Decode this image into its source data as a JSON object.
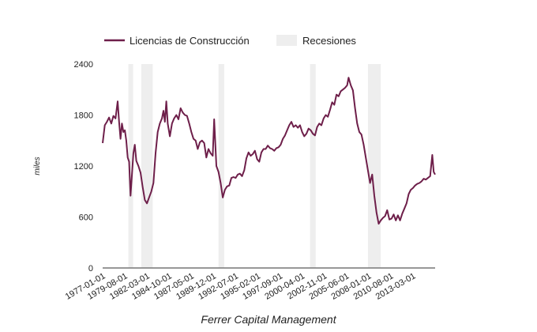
{
  "chart_data": {
    "type": "line",
    "title": "",
    "xlabel": "Ferrer Capital Management",
    "ylabel": "miles",
    "ylim": [
      0,
      2400
    ],
    "yticks": [
      "0",
      "600",
      "1200",
      "1800",
      "2400"
    ],
    "ytick_values": [
      0,
      600,
      1200,
      1800,
      2400
    ],
    "x_start": "1977-01",
    "x_end": "2015-10",
    "xticks": [
      "1977-01-01",
      "1979-08-01",
      "1982-03-01",
      "1984-10-01",
      "1987-05-01",
      "1989-12-01",
      "1992-07-01",
      "1995-02-01",
      "1997-09-01",
      "2000-04-01",
      "2002-11-01",
      "2005-06-01",
      "2008-01-01",
      "2010-08-01",
      "2013-03-01"
    ],
    "legend": {
      "position": "top",
      "entries": [
        {
          "label": "Licencias de Construcción",
          "kind": "line",
          "color": "#6e1f4a"
        },
        {
          "label": "Recesiones",
          "kind": "box",
          "color": "#eeeeee"
        }
      ]
    },
    "recessions": [
      {
        "start": "1980-01",
        "end": "1980-07"
      },
      {
        "start": "1981-07",
        "end": "1982-11"
      },
      {
        "start": "1990-07",
        "end": "1991-03"
      },
      {
        "start": "2001-03",
        "end": "2001-11"
      },
      {
        "start": "2007-12",
        "end": "2009-06"
      }
    ],
    "series": [
      {
        "name": "Licencias de Construcción",
        "color": "#6e1f4a",
        "points": [
          [
            "1977-01",
            1470
          ],
          [
            "1977-04",
            1680
          ],
          [
            "1977-07",
            1720
          ],
          [
            "1977-10",
            1770
          ],
          [
            "1978-01",
            1700
          ],
          [
            "1978-04",
            1790
          ],
          [
            "1978-07",
            1760
          ],
          [
            "1978-10",
            1960
          ],
          [
            "1978-12",
            1720
          ],
          [
            "1979-02",
            1520
          ],
          [
            "1979-04",
            1700
          ],
          [
            "1979-06",
            1600
          ],
          [
            "1979-08",
            1620
          ],
          [
            "1979-10",
            1500
          ],
          [
            "1979-12",
            1300
          ],
          [
            "1980-02",
            1250
          ],
          [
            "1980-04",
            850
          ],
          [
            "1980-06",
            1100
          ],
          [
            "1980-08",
            1350
          ],
          [
            "1980-10",
            1450
          ],
          [
            "1980-12",
            1260
          ],
          [
            "1981-03",
            1200
          ],
          [
            "1981-06",
            1120
          ],
          [
            "1981-09",
            950
          ],
          [
            "1981-12",
            800
          ],
          [
            "1982-03",
            760
          ],
          [
            "1982-06",
            830
          ],
          [
            "1982-09",
            900
          ],
          [
            "1982-12",
            1000
          ],
          [
            "1983-03",
            1350
          ],
          [
            "1983-06",
            1600
          ],
          [
            "1983-09",
            1700
          ],
          [
            "1983-12",
            1760
          ],
          [
            "1984-02",
            1850
          ],
          [
            "1984-04",
            1720
          ],
          [
            "1984-06",
            1960
          ],
          [
            "1984-08",
            1700
          ],
          [
            "1984-11",
            1550
          ],
          [
            "1985-02",
            1700
          ],
          [
            "1985-05",
            1760
          ],
          [
            "1985-08",
            1800
          ],
          [
            "1985-11",
            1750
          ],
          [
            "1986-02",
            1880
          ],
          [
            "1986-05",
            1830
          ],
          [
            "1986-08",
            1800
          ],
          [
            "1986-11",
            1790
          ],
          [
            "1987-02",
            1700
          ],
          [
            "1987-05",
            1600
          ],
          [
            "1987-08",
            1520
          ],
          [
            "1987-11",
            1500
          ],
          [
            "1988-02",
            1400
          ],
          [
            "1988-05",
            1480
          ],
          [
            "1988-08",
            1500
          ],
          [
            "1988-11",
            1470
          ],
          [
            "1989-02",
            1300
          ],
          [
            "1989-05",
            1400
          ],
          [
            "1989-08",
            1350
          ],
          [
            "1989-11",
            1320
          ],
          [
            "1990-01",
            1750
          ],
          [
            "1990-04",
            1200
          ],
          [
            "1990-07",
            1130
          ],
          [
            "1990-10",
            1000
          ],
          [
            "1991-01",
            830
          ],
          [
            "1991-04",
            920
          ],
          [
            "1991-07",
            960
          ],
          [
            "1991-10",
            970
          ],
          [
            "1992-01",
            1060
          ],
          [
            "1992-04",
            1070
          ],
          [
            "1992-07",
            1060
          ],
          [
            "1992-10",
            1100
          ],
          [
            "1993-01",
            1110
          ],
          [
            "1993-04",
            1080
          ],
          [
            "1993-07",
            1150
          ],
          [
            "1993-10",
            1290
          ],
          [
            "1994-01",
            1360
          ],
          [
            "1994-04",
            1320
          ],
          [
            "1994-07",
            1340
          ],
          [
            "1994-10",
            1380
          ],
          [
            "1995-01",
            1280
          ],
          [
            "1995-04",
            1250
          ],
          [
            "1995-07",
            1360
          ],
          [
            "1995-10",
            1400
          ],
          [
            "1996-01",
            1400
          ],
          [
            "1996-04",
            1440
          ],
          [
            "1996-07",
            1410
          ],
          [
            "1996-10",
            1400
          ],
          [
            "1997-01",
            1380
          ],
          [
            "1997-04",
            1410
          ],
          [
            "1997-07",
            1420
          ],
          [
            "1997-10",
            1450
          ],
          [
            "1998-01",
            1520
          ],
          [
            "1998-04",
            1560
          ],
          [
            "1998-07",
            1620
          ],
          [
            "1998-10",
            1680
          ],
          [
            "1999-01",
            1720
          ],
          [
            "1999-04",
            1660
          ],
          [
            "1999-07",
            1680
          ],
          [
            "1999-10",
            1650
          ],
          [
            "2000-01",
            1680
          ],
          [
            "2000-04",
            1600
          ],
          [
            "2000-07",
            1550
          ],
          [
            "2000-10",
            1580
          ],
          [
            "2001-01",
            1640
          ],
          [
            "2001-04",
            1620
          ],
          [
            "2001-07",
            1580
          ],
          [
            "2001-10",
            1560
          ],
          [
            "2002-01",
            1660
          ],
          [
            "2002-04",
            1700
          ],
          [
            "2002-07",
            1680
          ],
          [
            "2002-10",
            1760
          ],
          [
            "2003-01",
            1800
          ],
          [
            "2003-04",
            1780
          ],
          [
            "2003-07",
            1860
          ],
          [
            "2003-10",
            1950
          ],
          [
            "2004-01",
            1920
          ],
          [
            "2004-04",
            2040
          ],
          [
            "2004-07",
            2020
          ],
          [
            "2004-10",
            2080
          ],
          [
            "2005-01",
            2100
          ],
          [
            "2005-04",
            2120
          ],
          [
            "2005-07",
            2150
          ],
          [
            "2005-09",
            2240
          ],
          [
            "2005-12",
            2150
          ],
          [
            "2006-03",
            2090
          ],
          [
            "2006-06",
            1880
          ],
          [
            "2006-09",
            1700
          ],
          [
            "2006-12",
            1600
          ],
          [
            "2007-03",
            1570
          ],
          [
            "2007-06",
            1450
          ],
          [
            "2007-09",
            1300
          ],
          [
            "2007-12",
            1150
          ],
          [
            "2008-03",
            1000
          ],
          [
            "2008-06",
            1100
          ],
          [
            "2008-09",
            850
          ],
          [
            "2008-12",
            650
          ],
          [
            "2009-03",
            520
          ],
          [
            "2009-06",
            560
          ],
          [
            "2009-09",
            590
          ],
          [
            "2009-12",
            610
          ],
          [
            "2010-03",
            680
          ],
          [
            "2010-06",
            570
          ],
          [
            "2010-09",
            580
          ],
          [
            "2010-12",
            630
          ],
          [
            "2011-03",
            560
          ],
          [
            "2011-06",
            620
          ],
          [
            "2011-09",
            560
          ],
          [
            "2011-12",
            640
          ],
          [
            "2012-03",
            700
          ],
          [
            "2012-06",
            760
          ],
          [
            "2012-09",
            870
          ],
          [
            "2012-12",
            920
          ],
          [
            "2013-03",
            940
          ],
          [
            "2013-06",
            970
          ],
          [
            "2013-09",
            990
          ],
          [
            "2013-12",
            1000
          ],
          [
            "2014-03",
            1020
          ],
          [
            "2014-06",
            1050
          ],
          [
            "2014-09",
            1040
          ],
          [
            "2014-12",
            1060
          ],
          [
            "2015-03",
            1080
          ],
          [
            "2015-06",
            1330
          ],
          [
            "2015-08",
            1130
          ],
          [
            "2015-10",
            1100
          ]
        ]
      }
    ]
  }
}
